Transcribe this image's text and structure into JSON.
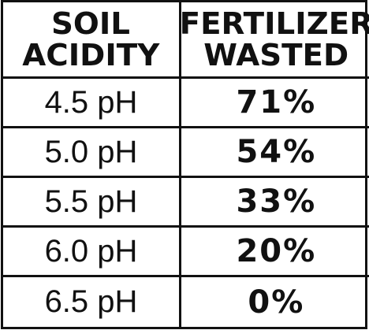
{
  "chart_data": {
    "type": "table",
    "columns": [
      [
        "SOIL",
        "ACIDITY"
      ],
      [
        "FERTILIZER",
        "WASTED"
      ]
    ],
    "rows": [
      {
        "acidity": "4.5 pH",
        "wasted": "71%"
      },
      {
        "acidity": "5.0 pH",
        "wasted": "54%"
      },
      {
        "acidity": "5.5 pH",
        "wasted": "33%"
      },
      {
        "acidity": "6.0 pH",
        "wasted": "20%"
      },
      {
        "acidity": "6.5 pH",
        "wasted": "0%"
      }
    ],
    "ph_values": [
      4.5,
      5.0,
      5.5,
      6.0,
      6.5
    ],
    "wasted_percent": [
      71,
      54,
      33,
      20,
      0
    ],
    "colors": {
      "text": "#111111",
      "border": "#111111",
      "background": "#ffffff"
    }
  }
}
